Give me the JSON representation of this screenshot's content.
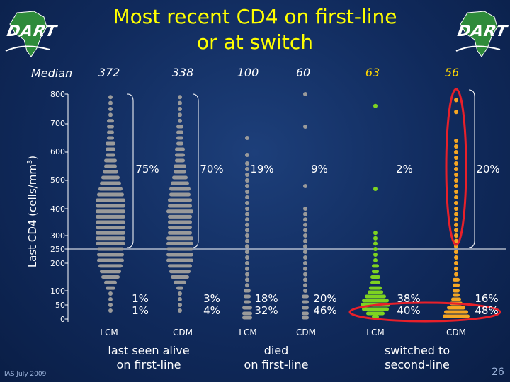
{
  "title_line1": "Most recent CD4 on first-line",
  "title_line2": "or at switch",
  "logo_left": "DART",
  "logo_right": "DART",
  "footer": "IAS July 2009",
  "page_number": "26",
  "colors": {
    "grey": "#9a9a9a",
    "green": "#7ed321",
    "orange": "#f5a623",
    "title": "#ffff00",
    "highlight": "#e8202a",
    "median_accent": "#ffd700"
  },
  "chart_data": {
    "type": "dot-histogram",
    "title": "Most recent CD4 on first-line or at switch",
    "ylabel": "Last CD4 (cells/mm3)",
    "ylabel_text": "Last CD4 (cells/mm",
    "ylabel_sup": "3",
    "ylabel_close": ")",
    "y_ticks": [
      "0",
      "50",
      "100",
      "200",
      "250",
      "300",
      "400",
      "500",
      "600",
      "700",
      "800"
    ],
    "median_label": "Median",
    "series": [
      {
        "name": "LCM",
        "group": "last seen alive on first-line",
        "median": "372",
        "pct_above_250": "75%",
        "pct_below_100": "1%",
        "pct_below_50": "1%",
        "color": "grey"
      },
      {
        "name": "CDM",
        "group": "last seen alive on first-line",
        "median": "338",
        "pct_above_250": "70%",
        "pct_below_100": "3%",
        "pct_below_50": "4%",
        "color": "grey"
      },
      {
        "name": "LCM",
        "group": "died on first-line",
        "median": "100",
        "pct_above_250": "19%",
        "pct_below_100": "18%",
        "pct_below_50": "32%",
        "color": "grey"
      },
      {
        "name": "CDM",
        "group": "died on first-line",
        "median": "60",
        "pct_above_250": "9%",
        "pct_below_100": "20%",
        "pct_below_50": "46%",
        "color": "grey"
      },
      {
        "name": "LCM",
        "group": "switched to second-line",
        "median": "63",
        "pct_above_250": "2%",
        "pct_below_100": "38%",
        "pct_below_50": "40%",
        "color": "green"
      },
      {
        "name": "CDM",
        "group": "switched to second-line",
        "median": "56",
        "pct_above_250": "20%",
        "pct_below_100": "16%",
        "pct_below_50": "48%",
        "color": "orange"
      }
    ],
    "groups": [
      {
        "line1": "last seen alive",
        "line2": "on first-line"
      },
      {
        "line1": "died",
        "line2": "on first-line"
      },
      {
        "line1": "switched to",
        "line2": "second-line"
      }
    ]
  }
}
